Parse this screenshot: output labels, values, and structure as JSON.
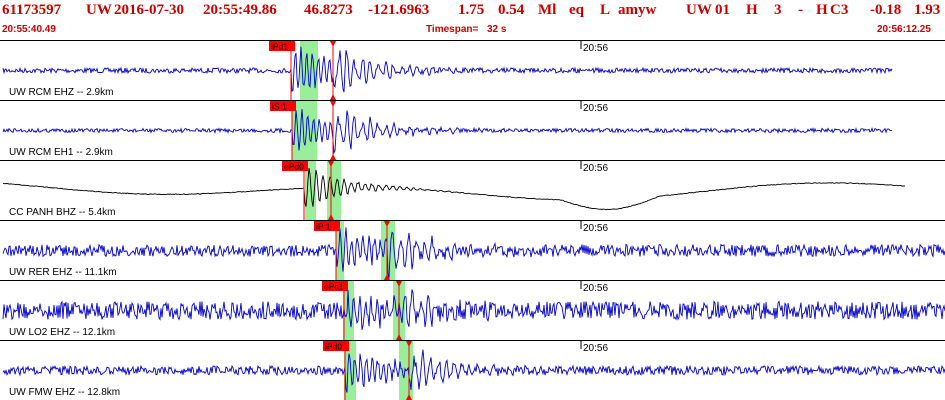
{
  "header": {
    "event_id": "61173597",
    "network": "UW",
    "origin_date": "2016-07-30",
    "origin_time": "20:55:49.86",
    "latitude": "46.8273",
    "longitude": "-121.6963",
    "depth": "1.75",
    "magnitude": "0.54",
    "mag_type": "Ml",
    "event_type": "eq",
    "origin_flag": "L",
    "analyst": "amyw",
    "net_code": "UW",
    "version": "01",
    "quality": "H",
    "nph": "3",
    "dash": "-",
    "region": "H",
    "code": "C3",
    "val1": "-0.18",
    "val2": "1.93",
    "start_time": "20:55:40.49",
    "timespan_label": "Timespan=",
    "timespan_value": "32 s",
    "end_time": "20:56:12.25"
  },
  "colors": {
    "title_red": "#cc0000",
    "trace_blue": "#0000cc",
    "trace_black": "#000000",
    "pick_red": "#ff0000",
    "window_green": "#99ee99"
  },
  "panels": [
    {
      "station": "UW RCM EHZ -- 2.9km",
      "minute_mark": "20:56",
      "pick": "iPd1",
      "trace_color": "blue"
    },
    {
      "station": "UW RCM EH1 -- 2.9km",
      "minute_mark": "20:56",
      "pick": "iS 1",
      "trace_color": "blue"
    },
    {
      "station": "CC PANH BHZ -- 5.4km",
      "minute_mark": "20:56",
      "pick": "ePd0",
      "trace_color": "black"
    },
    {
      "station": "UW RER EHZ -- 11.1km",
      "minute_mark": "20:56",
      "pick": "iP 1",
      "trace_color": "blue"
    },
    {
      "station": "UW LO2 EHZ -- 12.1km",
      "minute_mark": "20:56",
      "pick": "ePc1",
      "trace_color": "blue"
    },
    {
      "station": "UW FMW EHZ -- 12.8km",
      "minute_mark": "20:56",
      "pick": "iPd0",
      "trace_color": "blue"
    }
  ]
}
